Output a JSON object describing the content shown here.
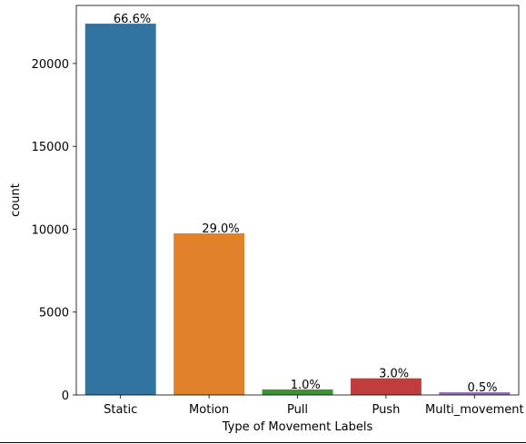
{
  "chart_data": {
    "type": "bar",
    "categories": [
      "Static",
      "Motion",
      "Pull",
      "Push",
      "Multi_movement"
    ],
    "values": [
      22400,
      9750,
      335,
      1005,
      168
    ],
    "data_labels": [
      "66.6%",
      "29.0%",
      "1.0%",
      "3.0%",
      "0.5%"
    ],
    "colors": [
      "#3274a1",
      "#e1812c",
      "#3a923a",
      "#c03d3e",
      "#9372b2"
    ],
    "xlabel": "Type of Movement Labels",
    "ylabel": "count",
    "ylim": [
      0,
      23500
    ],
    "yticks": [
      0,
      5000,
      10000,
      15000,
      20000
    ],
    "ytick_labels": [
      "0",
      "5000",
      "10000",
      "15000",
      "20000"
    ],
    "grid": false
  }
}
